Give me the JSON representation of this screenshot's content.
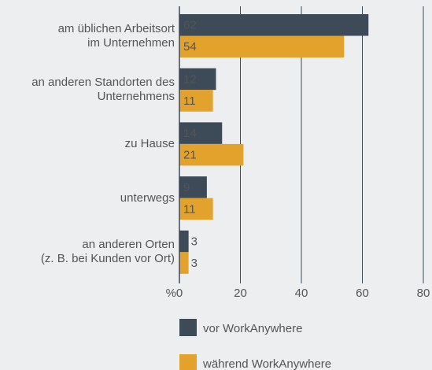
{
  "chart_data": {
    "type": "hbar",
    "categories": [
      "am üblichen Arbeitsort\nim Unternehmen",
      "an anderen Standorten des\nUnternehmens",
      "zu Hause",
      "unterwegs",
      "an anderen Orten\n(z. B. bei Kunden vor Ort)"
    ],
    "series": [
      {
        "name": "vor WorkAnywhere",
        "color": "#3d4a58",
        "values": [
          62,
          12,
          14,
          9,
          3
        ]
      },
      {
        "name": "während WorkAnywhere",
        "color": "#e2a22c",
        "values": [
          54,
          11,
          21,
          11,
          3
        ]
      }
    ],
    "xlabel": "%",
    "xlim": [
      0,
      80
    ],
    "xticks": [
      0,
      20,
      40,
      60,
      80
    ],
    "grid": true
  }
}
